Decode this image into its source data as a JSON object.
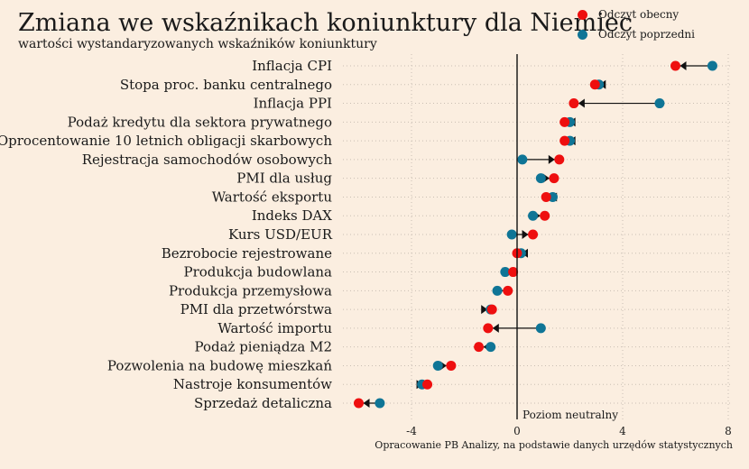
{
  "title": "Zmiana we wskaźnikach koniunktury dla Niemiec",
  "subtitle": "wartości wystandaryzowanych wskaźników koniunktury",
  "source": "Opracowanie PB Analizy, na podstawie danych urzędów statystycznych",
  "legend": {
    "current": "Odczyt obecny",
    "previous": "Odczyt poprzedni"
  },
  "colors": {
    "current": "#ee0f0f",
    "previous": "#0f7596",
    "background": "#fbeee0",
    "zero_line": "#111111",
    "grid": "#c9bfb3"
  },
  "chart_data": {
    "type": "dumbbell",
    "x_ticks": [
      -4,
      0,
      4,
      8
    ],
    "xlim": [
      -6.5,
      8.3
    ],
    "grid": true,
    "zero_line_label": "Poziom neutralny",
    "legend_position": "top-right",
    "categories": [
      "Inflacja CPI",
      "Stopa proc. banku centralnego",
      "Inflacja PPI",
      "Podaż kredytu dla sektora prywatnego",
      "Oprocentowanie 10 letnich obligacji skarbowych",
      "Rejestracja samochodów osobowych",
      "PMI dla usług",
      "Wartość eksportu",
      "Indeks DAX",
      "Kurs USD/EUR",
      "Bezrobocie rejestrowane",
      "Produkcja budowlana",
      "Produkcja przemysłowa",
      "PMI dla przetwórstwa",
      "Wartość importu",
      "Podaż pieniądza M2",
      "Pozwolenia na budowę mieszkań",
      "Nastroje konsumentów",
      "Sprzedaż detaliczna"
    ],
    "series": [
      {
        "name": "Odczyt obecny",
        "values": [
          6.0,
          2.95,
          2.15,
          1.8,
          1.8,
          1.6,
          1.4,
          1.1,
          1.05,
          0.6,
          0.0,
          -0.15,
          -0.35,
          -0.95,
          -1.1,
          -1.45,
          -2.5,
          -3.4,
          -6.0
        ]
      },
      {
        "name": "Odczyt poprzedni",
        "values": [
          7.4,
          3.1,
          5.4,
          2.0,
          2.0,
          0.2,
          0.9,
          1.35,
          0.6,
          -0.2,
          0.15,
          -0.45,
          -0.75,
          -1.0,
          0.9,
          -1.0,
          -3.0,
          -3.6,
          -5.2
        ]
      }
    ]
  }
}
